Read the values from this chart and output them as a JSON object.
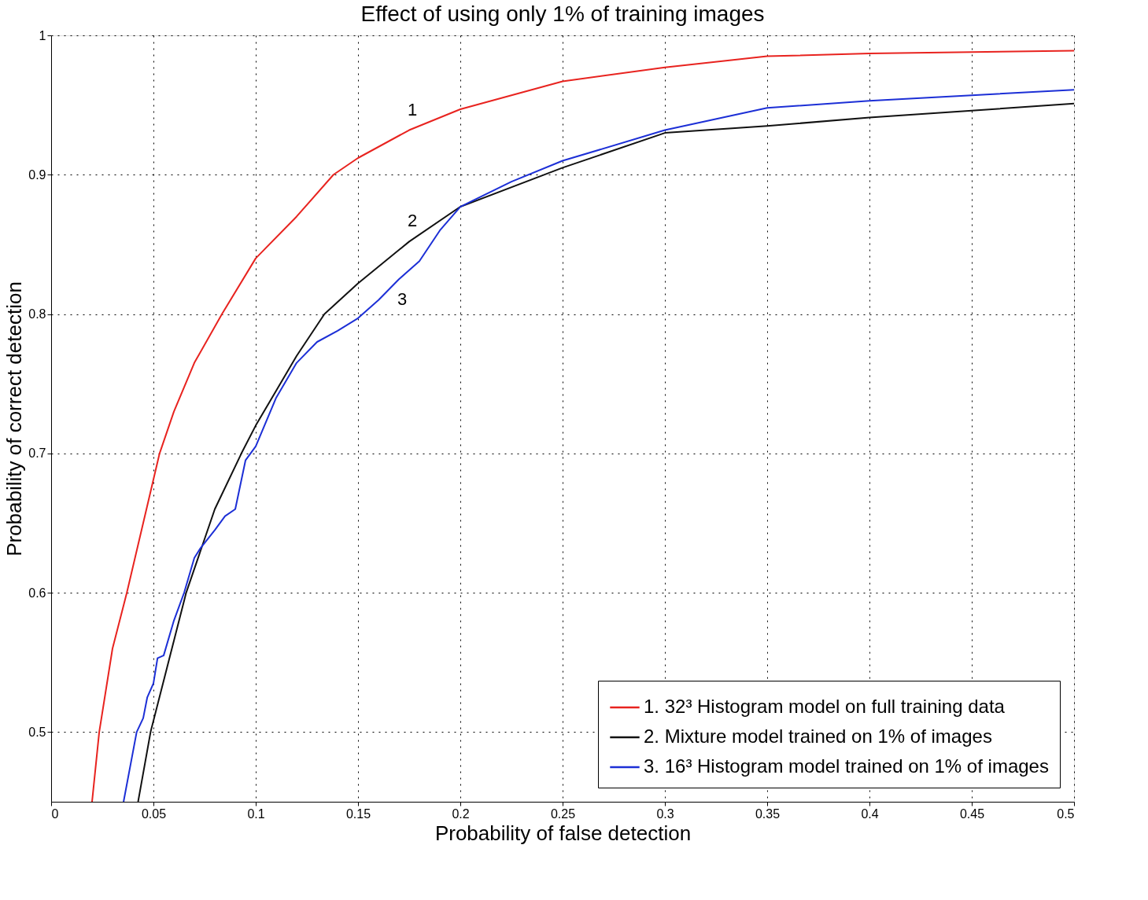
{
  "chart_data": {
    "type": "line",
    "title": "Effect of using only 1% of training images",
    "xlabel": "Probability of false detection",
    "ylabel": "Probability of correct detection",
    "xlim": [
      0,
      0.5
    ],
    "xticks": [
      0,
      0.05,
      0.1,
      0.15,
      0.2,
      0.25,
      0.3,
      0.35,
      0.4,
      0.45,
      0.5
    ],
    "ylim": [
      0.45,
      1
    ],
    "yticks": [
      0.5,
      0.6,
      0.7,
      0.8,
      0.9,
      1
    ],
    "grid": true,
    "legend": "bottom right",
    "line_style": "solid",
    "marker": "none",
    "series": [
      {
        "name": "1. 32³ Histogram model on full training data",
        "color": "#e8231f",
        "x": [
          0.02,
          0.0235,
          0.03,
          0.037,
          0.053,
          0.06,
          0.07,
          0.0835,
          0.1,
          0.12,
          0.138,
          0.15,
          0.175,
          0.2,
          0.25,
          0.3,
          0.35,
          0.4,
          0.45,
          0.5
        ],
        "values": [
          0.45,
          0.5,
          0.56,
          0.6,
          0.7,
          0.73,
          0.765,
          0.8,
          0.84,
          0.87,
          0.9,
          0.912,
          0.932,
          0.947,
          0.967,
          0.977,
          0.985,
          0.987,
          0.988,
          0.989
        ]
      },
      {
        "name": "2. Mixture model trained on 1% of images",
        "color": "#111111",
        "x": [
          0.0425,
          0.0486,
          0.066,
          0.08,
          0.093,
          0.1,
          0.12,
          0.1336,
          0.15,
          0.175,
          0.2,
          0.25,
          0.3,
          0.35,
          0.4,
          0.45,
          0.5
        ],
        "values": [
          0.45,
          0.5,
          0.6,
          0.66,
          0.7,
          0.72,
          0.77,
          0.8,
          0.822,
          0.852,
          0.877,
          0.905,
          0.93,
          0.935,
          0.941,
          0.946,
          0.951
        ]
      },
      {
        "name": "3. 16³ Histogram model trained on 1% of images",
        "color": "#1c2fd6",
        "x": [
          0.0354,
          0.0418,
          0.045,
          0.047,
          0.05,
          0.052,
          0.055,
          0.06,
          0.065,
          0.07,
          0.073,
          0.08,
          0.085,
          0.09,
          0.095,
          0.1,
          0.11,
          0.12,
          0.13,
          0.14,
          0.15,
          0.16,
          0.17,
          0.18,
          0.19,
          0.2,
          0.225,
          0.25,
          0.3,
          0.35,
          0.4,
          0.45,
          0.5
        ],
        "values": [
          0.45,
          0.5,
          0.51,
          0.525,
          0.535,
          0.553,
          0.555,
          0.58,
          0.6,
          0.625,
          0.632,
          0.645,
          0.655,
          0.66,
          0.695,
          0.705,
          0.74,
          0.765,
          0.78,
          0.788,
          0.797,
          0.81,
          0.825,
          0.838,
          0.86,
          0.877,
          0.895,
          0.91,
          0.932,
          0.948,
          0.953,
          0.957,
          0.961
        ]
      }
    ],
    "annotations": [
      "1",
      "2",
      "3"
    ]
  }
}
